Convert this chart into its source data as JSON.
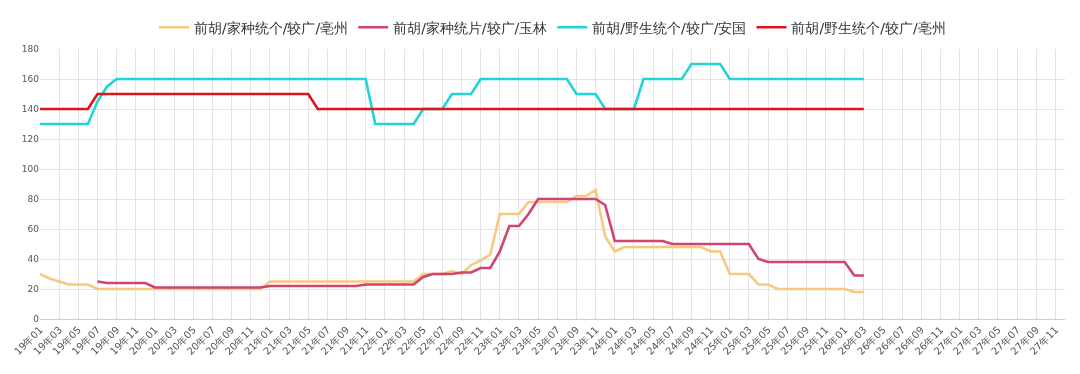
{
  "chart_data": {
    "type": "line",
    "categories": [
      "19年01",
      null,
      "19年03",
      null,
      "19年05",
      null,
      "19年07",
      null,
      "19年09",
      null,
      "19年11",
      null,
      "20年01",
      null,
      "20年03",
      null,
      "20年05",
      null,
      "20年07",
      null,
      "20年09",
      null,
      "20年11",
      null,
      "21年01",
      null,
      "21年03",
      null,
      "21年05",
      null,
      "21年07",
      null,
      "21年09",
      null,
      "21年11",
      null,
      "22年01",
      null,
      "22年03",
      null,
      "22年05",
      null,
      "22年07",
      null,
      "22年09",
      null,
      "22年11",
      null,
      "23年01",
      null,
      "23年03",
      null,
      "23年05",
      null,
      "23年07",
      null,
      "23年09",
      null,
      "23年11",
      null,
      "24年01",
      null,
      "24年03",
      null,
      "24年05",
      null,
      "24年07",
      null,
      "24年09",
      null,
      "24年11",
      null,
      "25年01",
      null,
      "25年03",
      null,
      "25年05",
      null,
      "25年07",
      null,
      "25年09",
      null,
      "25年11",
      null,
      "26年01",
      null,
      "26年03",
      null,
      "26年05",
      null,
      "26年07",
      null,
      "26年09",
      null,
      "26年11",
      null,
      "27年01",
      null,
      "27年03",
      null,
      "27年05",
      null,
      "27年07",
      null,
      "27年09",
      null,
      "27年11",
      null
    ],
    "series": [
      {
        "name": "前胡/家种统个/较广/亳州",
        "color": "#f7c97e",
        "values": [
          30,
          27,
          25,
          23,
          23,
          23,
          20,
          20,
          20,
          20,
          20,
          20,
          20,
          20,
          20,
          20,
          20,
          20,
          20,
          20,
          20,
          20,
          20,
          20,
          25,
          25,
          25,
          25,
          25,
          25,
          25,
          25,
          25,
          25,
          25,
          25,
          25,
          25,
          25,
          25,
          30,
          30,
          30,
          32,
          30,
          36,
          39,
          43,
          70,
          70,
          70,
          78,
          78,
          78,
          78,
          78,
          82,
          82,
          86,
          55,
          45,
          48,
          48,
          48,
          48,
          48,
          48,
          48,
          48,
          48,
          45,
          45,
          30,
          30,
          30,
          23,
          23,
          20,
          20,
          20,
          20,
          20,
          20,
          20,
          20,
          18,
          18,
          null,
          null,
          null,
          null,
          null,
          null,
          null,
          null,
          null,
          null,
          null,
          null,
          null,
          null,
          null,
          null,
          null,
          null,
          null,
          null,
          null
        ]
      },
      {
        "name": "前胡/家种统片/较广/玉林",
        "color": "#cf4470",
        "values": [
          null,
          null,
          null,
          null,
          null,
          null,
          25,
          24,
          24,
          24,
          24,
          24,
          21,
          21,
          21,
          21,
          21,
          21,
          21,
          21,
          21,
          21,
          21,
          21,
          22,
          22,
          22,
          22,
          22,
          22,
          22,
          22,
          22,
          22,
          23,
          23,
          23,
          23,
          23,
          23,
          28,
          30,
          30,
          30,
          31,
          31,
          34,
          34,
          45,
          62,
          62,
          70,
          80,
          80,
          80,
          80,
          80,
          80,
          80,
          76,
          52,
          52,
          52,
          52,
          52,
          52,
          50,
          50,
          50,
          50,
          50,
          50,
          50,
          50,
          50,
          40,
          38,
          38,
          38,
          38,
          38,
          38,
          38,
          38,
          38,
          29,
          29,
          null,
          null,
          null,
          null,
          null,
          null,
          null,
          null,
          null,
          null,
          null,
          null,
          null,
          null,
          null,
          null,
          null,
          null,
          null,
          null,
          null
        ]
      },
      {
        "name": "前胡/野生统个/较广/安国",
        "color": "#22d3d8",
        "values": [
          130,
          130,
          130,
          130,
          130,
          130,
          145,
          155,
          160,
          160,
          160,
          160,
          160,
          160,
          160,
          160,
          160,
          160,
          160,
          160,
          160,
          160,
          160,
          160,
          160,
          160,
          160,
          160,
          160,
          160,
          160,
          160,
          160,
          160,
          160,
          130,
          130,
          130,
          130,
          130,
          140,
          140,
          140,
          150,
          150,
          150,
          160,
          160,
          160,
          160,
          160,
          160,
          160,
          160,
          160,
          160,
          150,
          150,
          150,
          140,
          140,
          140,
          140,
          160,
          160,
          160,
          160,
          160,
          170,
          170,
          170,
          170,
          160,
          160,
          160,
          160,
          160,
          160,
          160,
          160,
          160,
          160,
          160,
          160,
          160,
          160,
          160,
          null,
          null,
          null,
          null,
          null,
          null,
          null,
          null,
          null,
          null,
          null,
          null,
          null,
          null,
          null,
          null,
          null,
          null,
          null,
          null,
          null
        ]
      },
      {
        "name": "前胡/野生统个/较广/亳州",
        "color": "#e0141a",
        "values": [
          140,
          140,
          140,
          140,
          140,
          140,
          150,
          150,
          150,
          150,
          150,
          150,
          150,
          150,
          150,
          150,
          150,
          150,
          150,
          150,
          150,
          150,
          150,
          150,
          150,
          150,
          150,
          150,
          150,
          140,
          140,
          140,
          140,
          140,
          140,
          140,
          140,
          140,
          140,
          140,
          140,
          140,
          140,
          140,
          140,
          140,
          140,
          140,
          140,
          140,
          140,
          140,
          140,
          140,
          140,
          140,
          140,
          140,
          140,
          140,
          140,
          140,
          140,
          140,
          140,
          140,
          140,
          140,
          140,
          140,
          140,
          140,
          140,
          140,
          140,
          140,
          140,
          140,
          140,
          140,
          140,
          140,
          140,
          140,
          140,
          140,
          140,
          null,
          null,
          null,
          null,
          null,
          null,
          null,
          null,
          null,
          null,
          null,
          null,
          null,
          null,
          null,
          null,
          null,
          null,
          null,
          null,
          null
        ]
      }
    ],
    "ylim": [
      0,
      180
    ],
    "yticks": [
      0,
      20,
      40,
      60,
      80,
      100,
      120,
      140,
      160,
      180
    ],
    "grid": true,
    "legend": "top",
    "marker": "none",
    "line_style": "solid"
  }
}
